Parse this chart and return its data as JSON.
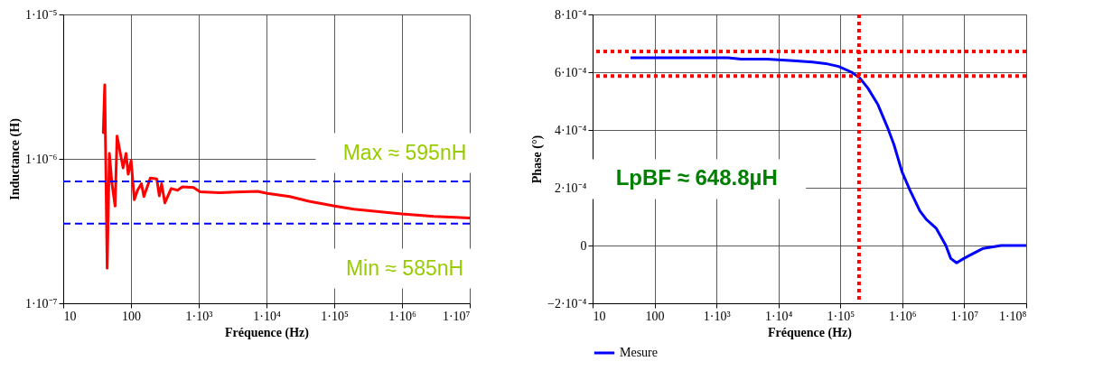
{
  "chart_data": [
    {
      "type": "line",
      "xlabel": "Fréquence (Hz)",
      "ylabel": "Inductance (H)",
      "log": "xy",
      "grid": true,
      "legend": false,
      "xlim": [
        10,
        10000000
      ],
      "ylim": [
        1e-07,
        1e-05
      ],
      "xticks": [
        10,
        100,
        {
          "value": 1000,
          "label": "1·10³"
        },
        {
          "value": 10000,
          "label": "1·10⁴"
        },
        {
          "value": 100000,
          "label": "1·10⁵"
        },
        {
          "value": 1000000,
          "label": "1·10⁶"
        },
        {
          "value": 10000000,
          "label": "1·10⁷"
        }
      ],
      "yticks": [
        {
          "value": 1e-07,
          "label": "1·10⁻⁷"
        },
        {
          "value": 1e-06,
          "label": "1·10⁻⁶"
        },
        {
          "value": 1e-05,
          "label": "1·10⁻⁵"
        }
      ],
      "series": [
        {
          "color": "#ff0000",
          "x": [
            39,
            41,
            44.5,
            48,
            52.4,
            58.3,
            62.3,
            76.5,
            84.5,
            91,
            100.5,
            112,
            125,
            142.6,
            155,
            193,
            240,
            262,
            283,
            316,
            392,
            487,
            574,
            839,
            1045,
            2009,
            7413,
            10280,
            22000,
            42400,
            101000,
            194000,
            995000,
            2950000,
            10000000
          ],
          "values": [
            1.52e-06,
            3.26e-06,
            1.75e-07,
            1.09e-06,
            6.73e-07,
            4.71e-07,
            1.44e-06,
            8.67e-07,
            1.09e-06,
            7.83e-07,
            9.75e-07,
            5.21e-07,
            6.07e-07,
            6.73e-07,
            5.49e-07,
            7.36e-07,
            7.26e-07,
            5.55e-07,
            6.73e-07,
            4.95e-07,
            6.23e-07,
            6.07e-07,
            6.39e-07,
            6.33e-07,
            5.92e-07,
            5.83e-07,
            5.95e-07,
            5.77e-07,
            5.48e-07,
            5.08e-07,
            4.71e-07,
            4.48e-07,
            4.15e-07,
            4e-07,
            3.9e-07
          ]
        }
      ],
      "ref_lines": [
        {
          "axis": "y",
          "value": 6.97e-07,
          "color": "#0000ff",
          "line_style": "dashed"
        },
        {
          "axis": "y",
          "value": 3.56e-07,
          "color": "#0000ff",
          "line_style": "dashed"
        }
      ],
      "annotations": [
        "Max ≈ 595nH",
        "Min ≈ 585nH"
      ]
    },
    {
      "type": "line",
      "xlabel": "Fréquence (Hz)",
      "ylabel": "Phase (°)",
      "log": "x",
      "grid": true,
      "legend": "bottom left",
      "xlim": [
        10,
        100000000
      ],
      "ylim": [
        -0.0002,
        0.0008
      ],
      "xticks": [
        10,
        100,
        {
          "value": 1000,
          "label": "1·10³"
        },
        {
          "value": 10000,
          "label": "1·10⁴"
        },
        {
          "value": 100000,
          "label": "1·10⁵"
        },
        {
          "value": 1000000,
          "label": "1·10⁶"
        },
        {
          "value": 10000000,
          "label": "1·10⁷"
        },
        {
          "value": 100000000,
          "label": "1·10⁸"
        }
      ],
      "yticks": [
        {
          "value": -0.0002,
          "label": "−2·10⁻⁴"
        },
        0,
        {
          "value": 0.0002,
          "label": "2·10⁻⁴"
        },
        {
          "value": 0.0004,
          "label": "4·10⁻⁴"
        },
        {
          "value": 0.0006,
          "label": "6·10⁻⁴"
        },
        {
          "value": 0.0008,
          "label": "8·10⁻⁴"
        }
      ],
      "series": [
        {
          "name": "Mesure",
          "color": "#0000ff",
          "x": [
            41,
            1540,
            2500,
            6560,
            17260,
            35650,
            57810,
            93760,
            152100,
            205600,
            278000,
            399000,
            574000,
            731000,
            989000,
            1337000,
            1919000,
            2443000,
            3516000,
            5047000,
            6053000,
            7516000,
            9817000,
            13270000,
            20230000,
            39360000,
            100000000
          ],
          "values": [
            0.00065,
            0.00065,
            0.000645,
            0.000645,
            0.00064,
            0.000635,
            0.00063,
            0.00062,
            0.0006,
            0.00058,
            0.000545,
            0.00049,
            0.00041,
            0.00035,
            0.000255,
            0.00019,
            0.00012,
            9e-05,
            6e-05,
            0,
            -4.5e-05,
            -6e-05,
            -4.5e-05,
            -3e-05,
            -1e-05,
            0,
            0
          ]
        }
      ],
      "ref_lines": [
        {
          "axis": "y",
          "value": 0.000672,
          "color": "#ff0000",
          "line_style": "dotted"
        },
        {
          "axis": "y",
          "value": 0.000587,
          "color": "#ff0000",
          "line_style": "dotted"
        },
        {
          "axis": "x",
          "value": 200000,
          "color": "#ff0000",
          "line_style": "dotted"
        }
      ],
      "annotations": [
        "LpBF ≈ 648.8µH"
      ]
    }
  ]
}
